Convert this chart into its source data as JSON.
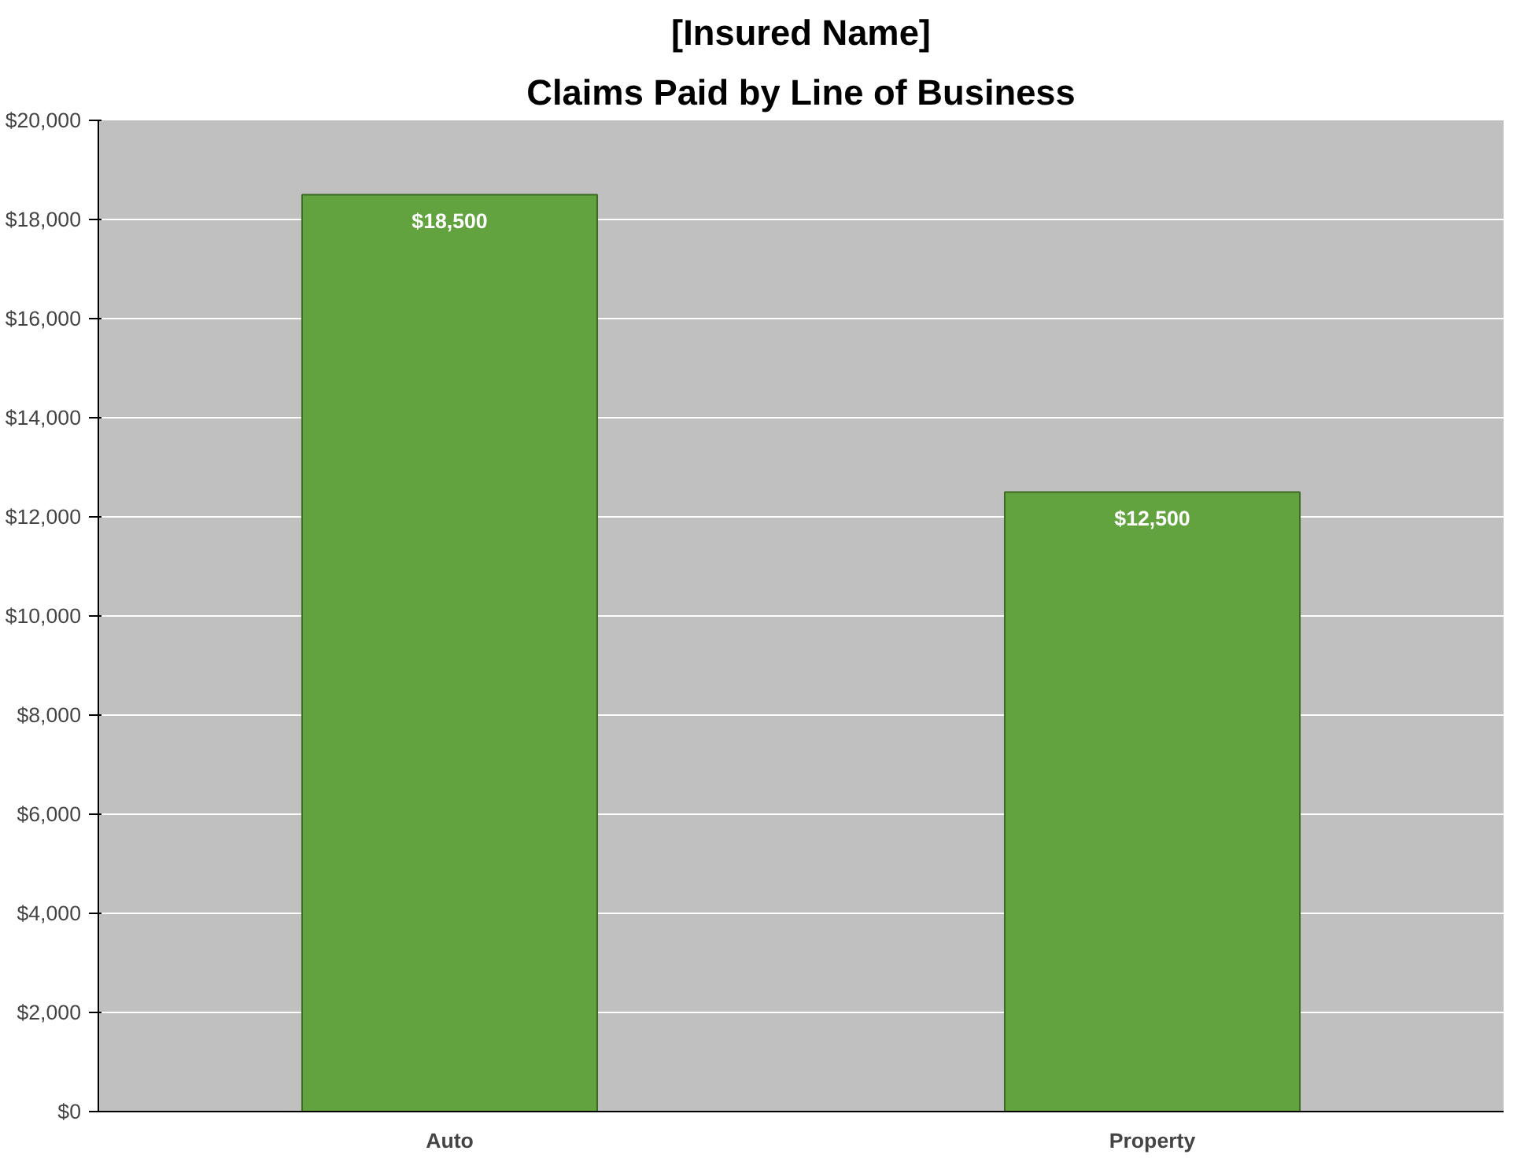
{
  "chart_data": {
    "type": "bar",
    "title": "[Insured Name]",
    "subtitle": "Claims Paid by Line of Business",
    "categories": [
      "Auto",
      "Property"
    ],
    "values": [
      18500,
      12500
    ],
    "color": "#62a33f",
    "value_labels": [
      "$18,500",
      "$12,500"
    ],
    "ylim": [
      0,
      20000
    ],
    "yticks": [
      {
        "value": 0,
        "label": "$0"
      },
      {
        "value": 2000,
        "label": "$2,000"
      },
      {
        "value": 4000,
        "label": "$4,000"
      },
      {
        "value": 6000,
        "label": "$6,000"
      },
      {
        "value": 8000,
        "label": "$8,000"
      },
      {
        "value": 10000,
        "label": "$10,000"
      },
      {
        "value": 12000,
        "label": "$12,000"
      },
      {
        "value": 14000,
        "label": "$14,000"
      },
      {
        "value": 16000,
        "label": "$16,000"
      },
      {
        "value": 18000,
        "label": "$18,000"
      },
      {
        "value": 20000,
        "label": "$20,000"
      }
    ],
    "grid": "y"
  }
}
